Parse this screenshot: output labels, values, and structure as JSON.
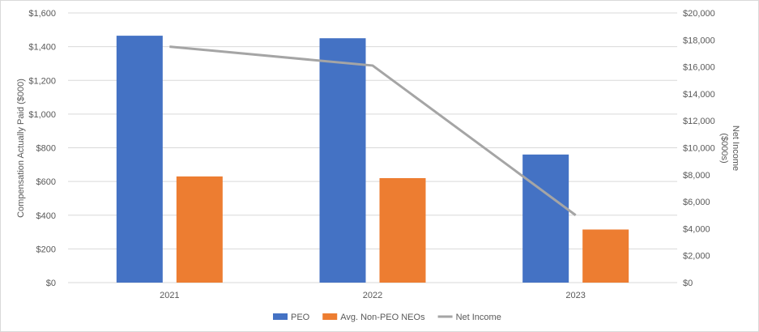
{
  "chart_data": {
    "type": "bar",
    "categories": [
      "2021",
      "2022",
      "2023"
    ],
    "series": [
      {
        "name": "PEO",
        "type": "bar",
        "axis": "left",
        "color": "#4472C4",
        "values": [
          1465,
          1450,
          760
        ]
      },
      {
        "name": "Avg. Non-PEO NEOs",
        "type": "bar",
        "axis": "left",
        "color": "#ED7D31",
        "values": [
          630,
          620,
          315
        ]
      },
      {
        "name": "Net Income",
        "type": "line",
        "axis": "right",
        "color": "#A5A5A5",
        "values": [
          17500,
          16100,
          5000
        ]
      }
    ],
    "ylabel": "Compensation Actually Paid ($000)",
    "y2label_lines": [
      "Net Income",
      "($000s)"
    ],
    "ylim": [
      0,
      1600
    ],
    "y2lim": [
      0,
      20000
    ],
    "yticks": [
      "$0",
      "$200",
      "$400",
      "$600",
      "$800",
      "$1,000",
      "$1,200",
      "$1,400",
      "$1,600"
    ],
    "y2ticks": [
      "$0",
      "$2,000",
      "$4,000",
      "$6,000",
      "$8,000",
      "$10,000",
      "$12,000",
      "$14,000",
      "$16,000",
      "$18,000",
      "$20,000"
    ],
    "gridlines": true,
    "legend_position": "bottom",
    "gridline_color": "#d9d9d9"
  }
}
